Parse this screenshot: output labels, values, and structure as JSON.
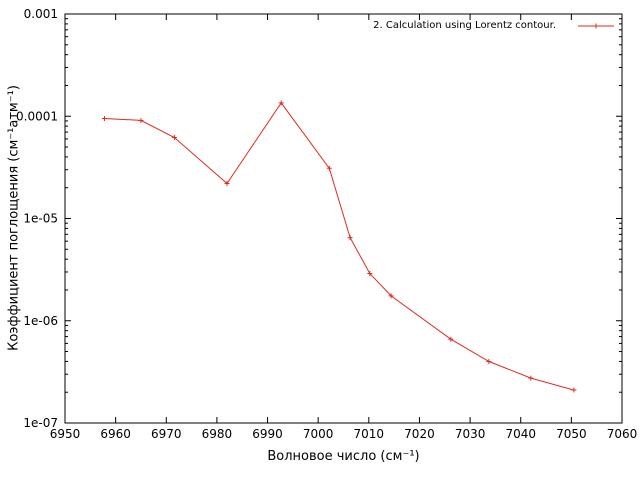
{
  "colors": {
    "background": "#ffffff",
    "axis": "#000000",
    "text": "#000000",
    "series1": "#df2b1d"
  },
  "chart_data": {
    "type": "line",
    "title": "",
    "xlabel": "Волновое число (см⁻¹)",
    "ylabel": "Коэффициент поглощения (см⁻¹атм⁻¹)",
    "xscale": "linear",
    "yscale": "log",
    "xlim": [
      6950,
      7060
    ],
    "ylim": [
      1e-07,
      0.001
    ],
    "grid": false,
    "legend_position": "top-right-inside",
    "x_ticks": [
      6950,
      6960,
      6970,
      6980,
      6990,
      7000,
      7010,
      7020,
      7030,
      7040,
      7050,
      7060
    ],
    "y_tick_labels": [
      "0.001",
      "0.0001",
      "1e-05",
      "1e-06",
      "1e-07"
    ],
    "y_tick_values": [
      0.001,
      0.0001,
      1e-05,
      1e-06,
      1e-07
    ],
    "series": [
      {
        "name": "2. Calculation using Lorentz contour.",
        "color": "#df2b1d",
        "marker": "plus",
        "x": [
          6957.8,
          6965.0,
          6971.6,
          6982.0,
          6992.7,
          7002.2,
          7006.3,
          7010.2,
          7014.4,
          7026.2,
          7033.7,
          7042.0,
          7050.5
        ],
        "y": [
          9.5e-05,
          9.1e-05,
          6.2e-05,
          2.2e-05,
          0.000135,
          3.1e-05,
          6.5e-06,
          2.9e-06,
          1.75e-06,
          6.6e-07,
          4e-07,
          2.75e-07,
          2.1e-07
        ]
      }
    ]
  }
}
